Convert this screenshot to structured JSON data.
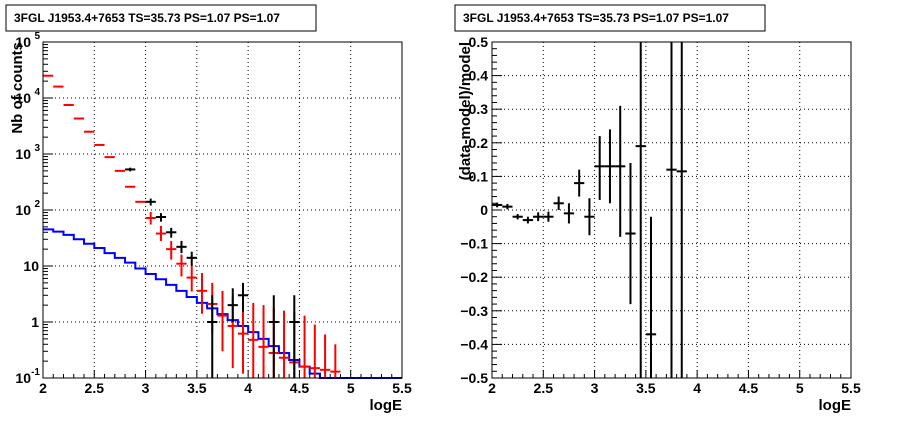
{
  "chart_data": [
    {
      "type": "scatter",
      "title": "3FGL J1953.4+7653 TS=35.73 PS=1.07 PS=1.07",
      "xlabel": "logE",
      "ylabel": "Nb of counts",
      "xlim": [
        2,
        5.5
      ],
      "ylim": [
        0.1,
        100000
      ],
      "yscale": "log",
      "grid": true,
      "x_ticks": [
        {
          "value": 2,
          "label": "2"
        },
        {
          "value": 2.5,
          "label": "2.5"
        },
        {
          "value": 3,
          "label": "3"
        },
        {
          "value": 3.5,
          "label": "3.5"
        },
        {
          "value": 4,
          "label": "4"
        },
        {
          "value": 4.5,
          "label": "4.5"
        },
        {
          "value": 5,
          "label": "5"
        },
        {
          "value": 5.5,
          "label": "5.5"
        }
      ],
      "y_ticks": [
        {
          "value": 0.1,
          "label": "10",
          "sup": "-1"
        },
        {
          "value": 1,
          "label": "1",
          "sup": ""
        },
        {
          "value": 10,
          "label": "10",
          "sup": ""
        },
        {
          "value": 100,
          "label": "10",
          "sup": "2"
        },
        {
          "value": 1000,
          "label": "10",
          "sup": "3"
        },
        {
          "value": 10000,
          "label": "10",
          "sup": "4"
        },
        {
          "value": 100000,
          "label": "10",
          "sup": "5"
        }
      ],
      "series": [
        {
          "color": "#0000ff",
          "style": "step",
          "x": [
            2.0,
            2.1,
            2.2,
            2.3,
            2.4,
            2.5,
            2.6,
            2.7,
            2.8,
            2.9,
            3.0,
            3.1,
            3.2,
            3.3,
            3.4,
            3.5,
            3.6,
            3.7,
            3.8,
            3.9,
            4.0,
            4.1,
            4.2,
            4.3,
            4.4,
            4.5,
            4.6,
            4.7,
            4.8,
            4.9,
            5.0,
            5.1,
            5.2,
            5.3,
            5.4
          ],
          "values": [
            45,
            41,
            36,
            30,
            25,
            21,
            17,
            14,
            11.5,
            9,
            7.2,
            5.8,
            4.6,
            3.6,
            2.8,
            2.2,
            1.75,
            1.38,
            1.08,
            0.85,
            0.66,
            0.5,
            0.37,
            0.28,
            0.21,
            0.16,
            0.12,
            0.1,
            0.1,
            0.1,
            0.1,
            0.1,
            0.1,
            0.1,
            0.1
          ]
        },
        {
          "color": "#ff0000",
          "style": "markers",
          "x": [
            2.05,
            2.15,
            2.25,
            2.35,
            2.45,
            2.55,
            2.65,
            2.75,
            2.85,
            2.95,
            3.05,
            3.15,
            3.25,
            3.35,
            3.45,
            3.55,
            3.65,
            3.75,
            3.85,
            3.95,
            4.05,
            4.15,
            4.25,
            4.35,
            4.45,
            4.55,
            4.65,
            4.75,
            4.85
          ],
          "values": [
            25000,
            16000,
            7500,
            4300,
            2500,
            1450,
            880,
            500,
            260,
            140,
            72,
            38,
            20,
            11,
            6.2,
            3.6,
            2.1,
            1.3,
            0.85,
            0.62,
            0.48,
            0.36,
            0.28,
            0.23,
            0.19,
            0.16,
            0.15,
            0.14,
            0.13
          ],
          "err_low": [
            null,
            null,
            null,
            null,
            null,
            null,
            null,
            null,
            null,
            null,
            55,
            28,
            13,
            6.5,
            3.5,
            1.4,
            0.6,
            0.3,
            0.15,
            0.12,
            0.1,
            0.1,
            0.1,
            0.1,
            0.1,
            0.1,
            0.1,
            0.1,
            0.1
          ],
          "err_high": [
            null,
            null,
            null,
            null,
            null,
            null,
            null,
            null,
            null,
            null,
            92,
            52,
            28,
            16,
            10,
            7.5,
            5,
            3.6,
            2.8,
            2.5,
            2.2,
            2,
            1.8,
            1.6,
            1.5,
            1.3,
            0.9,
            0.6,
            0.4
          ]
        },
        {
          "color": "#000000",
          "style": "markers",
          "x": [
            2.85,
            3.05,
            3.15,
            3.25,
            3.35,
            3.45,
            3.65,
            3.85,
            3.95,
            4.25,
            4.45
          ],
          "values": [
            530,
            140,
            75,
            40,
            22,
            14,
            1,
            2,
            3,
            1,
            1
          ],
          "err_low": [
            490,
            120,
            62,
            32,
            17,
            10,
            0.1,
            1,
            1.5,
            0.1,
            0.1
          ],
          "err_high": [
            570,
            160,
            88,
            48,
            28,
            18,
            3,
            4,
            5,
            3,
            3
          ]
        }
      ]
    },
    {
      "type": "scatter",
      "title": "3FGL J1953.4+7653 TS=35.73 PS=1.07 PS=1.07",
      "xlabel": "logE",
      "ylabel": "(data-model)/model",
      "xlim": [
        2,
        5.5
      ],
      "ylim": [
        -0.5,
        0.5
      ],
      "grid": true,
      "x_ticks": [
        "2",
        "2.5",
        "3",
        "3.5",
        "4",
        "4.5",
        "5",
        "5.5"
      ],
      "y_ticks": [
        "−0.5",
        "−0.4",
        "−0.3",
        "−0.2",
        "−0.1",
        "0",
        "0.1",
        "0.2",
        "0.3",
        "0.4",
        "0.5"
      ],
      "y_tick_values": [
        -0.5,
        -0.4,
        -0.3,
        -0.2,
        -0.1,
        0,
        0.1,
        0.2,
        0.3,
        0.4,
        0.5
      ],
      "series": [
        {
          "color": "#000000",
          "style": "markers",
          "x": [
            2.05,
            2.15,
            2.25,
            2.35,
            2.45,
            2.55,
            2.65,
            2.75,
            2.85,
            2.95,
            3.05,
            3.15,
            3.25,
            3.35,
            3.45,
            3.55,
            3.75,
            3.85
          ],
          "values": [
            0.015,
            0.01,
            -0.02,
            -0.03,
            -0.02,
            -0.02,
            0.02,
            -0.01,
            0.08,
            -0.02,
            0.13,
            0.13,
            0.13,
            -0.07,
            0.19,
            -0.37,
            0.12,
            0.115
          ],
          "err_low": [
            0.008,
            0.002,
            -0.028,
            -0.04,
            -0.033,
            -0.035,
            0.0,
            -0.04,
            0.04,
            -0.075,
            0.03,
            0.02,
            -0.08,
            -0.28,
            -0.6,
            -0.6,
            -0.6,
            -0.6
          ],
          "err_high": [
            0.022,
            0.018,
            -0.012,
            -0.02,
            -0.007,
            -0.005,
            0.04,
            0.02,
            0.12,
            0.035,
            0.22,
            0.24,
            0.31,
            0.14,
            0.6,
            -0.02,
            0.6,
            0.6
          ]
        }
      ]
    }
  ]
}
